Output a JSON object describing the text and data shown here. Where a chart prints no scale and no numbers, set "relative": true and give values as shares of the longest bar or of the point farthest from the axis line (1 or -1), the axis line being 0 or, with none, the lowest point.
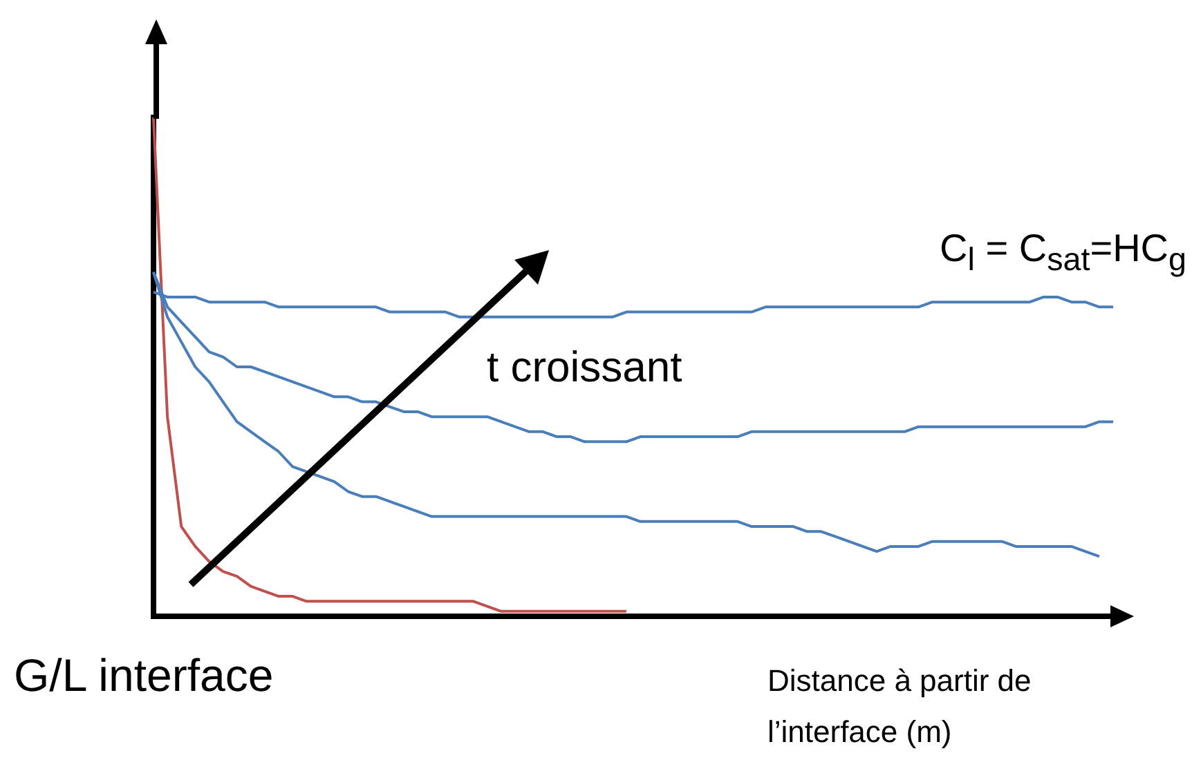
{
  "chart_data": {
    "type": "line",
    "relative": true,
    "xlabel": "Distance à partir de l’interface (m)",
    "legend": false,
    "grid": false,
    "annotations": [
      "C$_{l}$ = C$_{sat}$=HC$_{g}$",
      "t croissant",
      "G/L interface"
    ],
    "categories": [
      null,
      null,
      null,
      null,
      null,
      null,
      null,
      null,
      null,
      null,
      null,
      null,
      null,
      null,
      null,
      null,
      null,
      null,
      null,
      null,
      null,
      null,
      null,
      null,
      null,
      null,
      null,
      null,
      null,
      null,
      null,
      null,
      null,
      null,
      null,
      null,
      null,
      null,
      null,
      null,
      null,
      null,
      null,
      null,
      null,
      null,
      null,
      null,
      null,
      null,
      null,
      null,
      null,
      null,
      null,
      null,
      null,
      null,
      null,
      null,
      null,
      null,
      null,
      null,
      null,
      null,
      null,
      null,
      null,
      null
    ],
    "series": [
      {
        "color": "#4a7ebb",
        "values": [
          0.65,
          0.64,
          0.64,
          0.64,
          0.63,
          0.63,
          0.63,
          0.63,
          0.63,
          0.62,
          0.62,
          0.62,
          0.62,
          0.62,
          0.62,
          0.62,
          0.62,
          0.61,
          0.61,
          0.61,
          0.61,
          0.61,
          0.6,
          0.6,
          0.6,
          0.6,
          0.6,
          0.6,
          0.6,
          0.6,
          0.6,
          0.6,
          0.6,
          0.6,
          0.61,
          0.61,
          0.61,
          0.61,
          0.61,
          0.61,
          0.61,
          0.61,
          0.61,
          0.61,
          0.62,
          0.62,
          0.62,
          0.62,
          0.62,
          0.62,
          0.62,
          0.62,
          0.62,
          0.62,
          0.62,
          0.62,
          0.63,
          0.63,
          0.63,
          0.63,
          0.63,
          0.63,
          0.63,
          0.63,
          0.64,
          0.64,
          0.63,
          0.63,
          0.62,
          0.62
        ]
      },
      {
        "color": "#4a7ebb",
        "values": [
          0.69,
          0.62,
          0.59,
          0.56,
          0.53,
          0.52,
          0.5,
          0.5,
          0.49,
          0.48,
          0.47,
          0.46,
          0.45,
          0.44,
          0.44,
          0.43,
          0.43,
          0.42,
          0.41,
          0.41,
          0.4,
          0.4,
          0.4,
          0.4,
          0.4,
          0.39,
          0.38,
          0.37,
          0.37,
          0.36,
          0.36,
          0.35,
          0.35,
          0.35,
          0.35,
          0.36,
          0.36,
          0.36,
          0.36,
          0.36,
          0.36,
          0.36,
          0.36,
          0.37,
          0.37,
          0.37,
          0.37,
          0.37,
          0.37,
          0.37,
          0.37,
          0.37,
          0.37,
          0.37,
          0.37,
          0.38,
          0.38,
          0.38,
          0.38,
          0.38,
          0.38,
          0.38,
          0.38,
          0.38,
          0.38,
          0.38,
          0.38,
          0.38,
          0.39,
          0.39
        ]
      },
      {
        "color": "#4a7ebb",
        "values": [
          0.69,
          0.6,
          0.55,
          0.5,
          0.47,
          0.43,
          0.39,
          0.37,
          0.35,
          0.33,
          0.3,
          0.29,
          0.28,
          0.27,
          0.25,
          0.24,
          0.24,
          0.23,
          0.22,
          0.21,
          0.2,
          0.2,
          0.2,
          0.2,
          0.2,
          0.2,
          0.2,
          0.2,
          0.2,
          0.2,
          0.2,
          0.2,
          0.2,
          0.2,
          0.2,
          0.19,
          0.19,
          0.19,
          0.19,
          0.19,
          0.19,
          0.19,
          0.19,
          0.18,
          0.18,
          0.18,
          0.18,
          0.17,
          0.17,
          0.16,
          0.15,
          0.14,
          0.13,
          0.14,
          0.14,
          0.14,
          0.15,
          0.15,
          0.15,
          0.15,
          0.15,
          0.15,
          0.14,
          0.14,
          0.14,
          0.14,
          0.14,
          0.13,
          0.12,
          null
        ]
      },
      {
        "color": "#c0504d",
        "values": [
          1.0,
          0.4,
          0.18,
          0.14,
          0.11,
          0.09,
          0.08,
          0.06,
          0.05,
          0.04,
          0.04,
          0.03,
          0.03,
          0.03,
          0.03,
          0.03,
          0.03,
          0.03,
          0.03,
          0.03,
          0.03,
          0.03,
          0.03,
          0.03,
          0.02,
          0.01,
          0.01,
          0.01,
          0.01,
          0.01,
          0.01,
          0.01,
          0.01,
          0.01,
          0.01,
          null,
          null,
          null,
          null,
          null,
          null,
          null,
          null,
          null,
          null,
          null,
          null,
          null,
          null,
          null,
          null,
          null,
          null,
          null,
          null,
          null,
          null,
          null,
          null,
          null,
          null,
          null,
          null,
          null,
          null,
          null,
          null,
          null,
          null,
          null
        ]
      }
    ]
  }
}
